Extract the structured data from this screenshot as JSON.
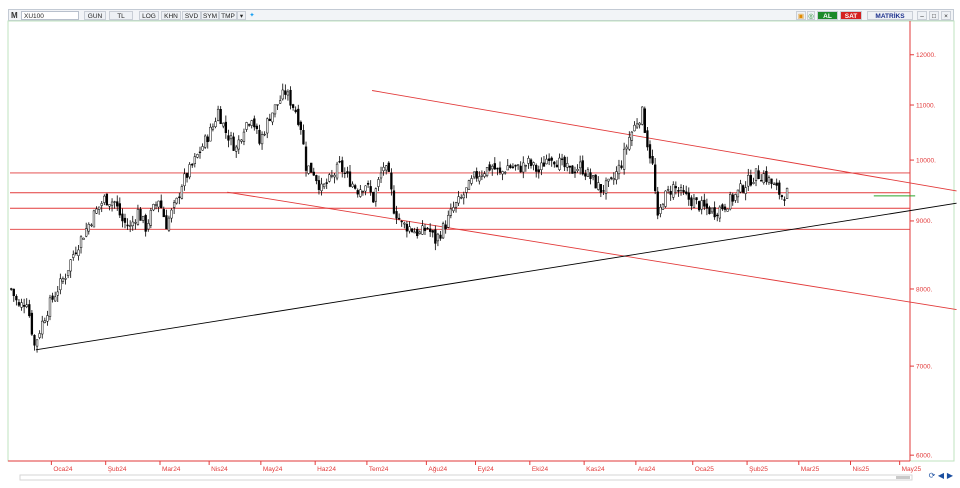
{
  "toolbar": {
    "menu_letter": "M",
    "symbol": "XU100",
    "period": "GUN",
    "currency": "TL",
    "log": "LOG",
    "khn": "KHN",
    "svd": "SVD",
    "sym": "SYM",
    "tmp": "TMP",
    "dropdown_icon": "caret-down-icon",
    "share_icon": "bird-icon",
    "al": "AL",
    "sat": "SAT",
    "brand": "MATRİKS",
    "colors": {
      "al": "#1d8a2a",
      "sat": "#d42020",
      "brand": "#1b2f8c"
    }
  },
  "chart_data": {
    "type": "candlestick",
    "x_tick_labels": [
      "Oca24",
      "Şub24",
      "Mar24",
      "Nis24",
      "May24",
      "Haz24",
      "Tem24",
      "Ağu24",
      "Eyl24",
      "Eki24",
      "Kas24",
      "Ara24",
      "Oca25",
      "Şub25",
      "Mar25",
      "Nis25",
      "May25"
    ],
    "y_tick_labels": [
      "12000.",
      "11000.",
      "10000.",
      "9000.",
      "8000.",
      "7000.",
      "6000."
    ],
    "y_tick_values": [
      12000,
      11000,
      10000,
      9000,
      8000,
      7000,
      6000
    ],
    "y_scale": "log",
    "ylim": [
      5950,
      12700
    ],
    "xlim": [
      0,
      348
    ],
    "x_tick_positions": [
      16,
      37,
      58,
      77,
      97,
      118,
      138,
      161,
      180,
      201,
      222,
      242,
      264,
      285,
      305,
      325,
      344
    ],
    "colors": {
      "candle": "#000000",
      "trend": "#e23a3a",
      "support": "#000000",
      "green": "#2aa52a",
      "axis": "#e23a3a"
    },
    "horizontal_lines": [
      9780,
      9450,
      9200,
      8870
    ],
    "trend_lines": [
      {
        "x1": 140,
        "y1": 11280,
        "x2": 366,
        "y2": 9480,
        "color": "#e23a3a"
      },
      {
        "x1": 84,
        "y1": 9460,
        "x2": 366,
        "y2": 7720,
        "color": "#e23a3a"
      },
      {
        "x1": 10,
        "y1": 7200,
        "x2": 366,
        "y2": 9280,
        "color": "#000000"
      }
    ],
    "green_line": {
      "x1": 334,
      "y1": 9400,
      "x2": 350,
      "y2": 9400
    },
    "ohlc_close_anchors": [
      [
        0,
        8000
      ],
      [
        3,
        7750
      ],
      [
        6,
        7850
      ],
      [
        9,
        7250
      ],
      [
        12,
        7550
      ],
      [
        15,
        7800
      ],
      [
        18,
        8000
      ],
      [
        21,
        8200
      ],
      [
        24,
        8500
      ],
      [
        28,
        8800
      ],
      [
        32,
        9100
      ],
      [
        36,
        9350
      ],
      [
        40,
        9300
      ],
      [
        43,
        9000
      ],
      [
        46,
        8900
      ],
      [
        49,
        9150
      ],
      [
        52,
        8900
      ],
      [
        54,
        9100
      ],
      [
        57,
        9350
      ],
      [
        60,
        8950
      ],
      [
        64,
        9300
      ],
      [
        66,
        9600
      ],
      [
        70,
        9900
      ],
      [
        74,
        10250
      ],
      [
        78,
        10600
      ],
      [
        80,
        10900
      ],
      [
        83,
        10500
      ],
      [
        87,
        10200
      ],
      [
        90,
        10600
      ],
      [
        93,
        10800
      ],
      [
        96,
        10300
      ],
      [
        100,
        10800
      ],
      [
        104,
        11100
      ],
      [
        106,
        11250
      ],
      [
        110,
        10900
      ],
      [
        112,
        10600
      ],
      [
        114,
        9900
      ],
      [
        117,
        9800
      ],
      [
        120,
        9500
      ],
      [
        124,
        9700
      ],
      [
        127,
        9900
      ],
      [
        130,
        9700
      ],
      [
        134,
        9500
      ],
      [
        137,
        9600
      ],
      [
        140,
        9350
      ],
      [
        144,
        9900
      ],
      [
        146,
        9700
      ],
      [
        148,
        9200
      ],
      [
        151,
        8950
      ],
      [
        154,
        8900
      ],
      [
        158,
        8800
      ],
      [
        161,
        8900
      ],
      [
        164,
        8700
      ],
      [
        168,
        8950
      ],
      [
        171,
        9200
      ],
      [
        174,
        9350
      ],
      [
        177,
        9550
      ],
      [
        179,
        9700
      ],
      [
        182,
        9800
      ],
      [
        186,
        9900
      ],
      [
        189,
        9750
      ],
      [
        192,
        9900
      ],
      [
        196,
        9850
      ],
      [
        200,
        9950
      ],
      [
        204,
        9800
      ],
      [
        208,
        10100
      ],
      [
        212,
        9950
      ],
      [
        216,
        9800
      ],
      [
        220,
        9900
      ],
      [
        224,
        9700
      ],
      [
        228,
        9500
      ],
      [
        232,
        9600
      ],
      [
        236,
        9950
      ],
      [
        239,
        10400
      ],
      [
        242,
        10700
      ],
      [
        244,
        10850
      ],
      [
        246,
        10300
      ],
      [
        248,
        9900
      ],
      [
        250,
        9000
      ],
      [
        252,
        9350
      ],
      [
        256,
        9550
      ],
      [
        260,
        9400
      ],
      [
        264,
        9300
      ],
      [
        268,
        9200
      ],
      [
        272,
        9150
      ],
      [
        276,
        9250
      ],
      [
        280,
        9400
      ],
      [
        284,
        9600
      ],
      [
        288,
        9750
      ],
      [
        291,
        9750
      ],
      [
        294,
        9600
      ],
      [
        298,
        9400
      ],
      [
        300,
        9450
      ]
    ]
  },
  "nav": {
    "refresh_icon": "refresh-icon",
    "prev_icon": "left-arrow-icon",
    "next_icon": "right-arrow-icon"
  }
}
